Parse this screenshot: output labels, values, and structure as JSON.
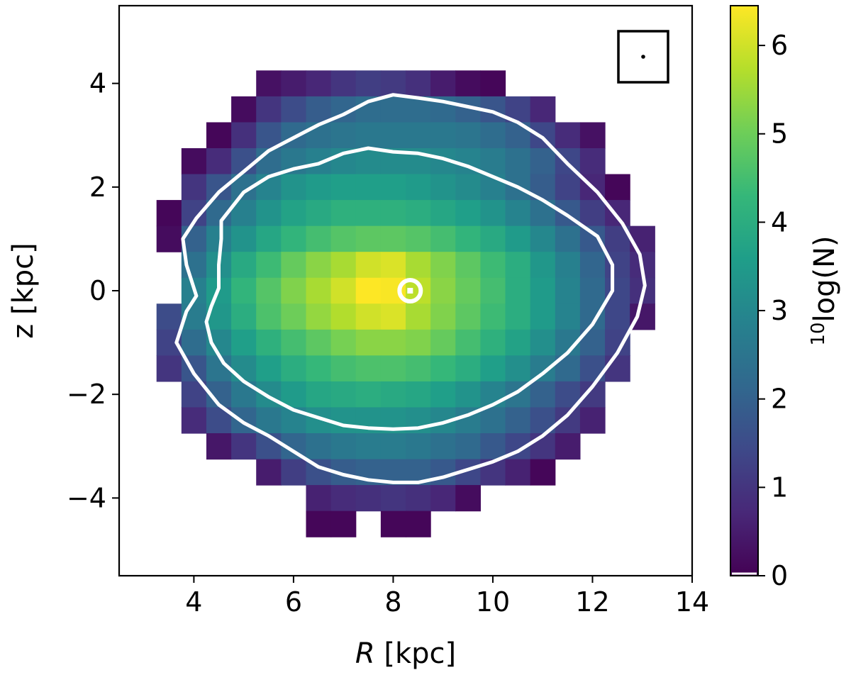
{
  "chart_data": {
    "type": "heatmap",
    "title": "",
    "xlabel": {
      "italic": "R",
      "rest": " [kpc]"
    },
    "ylabel": "z [kpc]",
    "xlim": [
      2.5,
      14
    ],
    "ylim": [
      -5.5,
      5.5
    ],
    "xticks": [
      4,
      6,
      8,
      10,
      12,
      14
    ],
    "yticks": [
      -4,
      -2,
      0,
      2,
      4
    ],
    "xtick_labels": [
      "4",
      "6",
      "8",
      "10",
      "12",
      "14"
    ],
    "ytick_labels": [
      "−4",
      "−2",
      "0",
      "2",
      "4"
    ],
    "colorbar": {
      "label_sup": "10",
      "label_rest": "log(N)",
      "range": [
        0,
        6.45
      ],
      "ticks": [
        0,
        1,
        2,
        3,
        4,
        5,
        6
      ],
      "tick_labels": [
        "0",
        "1",
        "2",
        "3",
        "4",
        "5",
        "6"
      ],
      "colormap": "viridis"
    },
    "bin_size_kpc": 0.5,
    "row_z_centers": [
      4.0,
      3.5,
      3.0,
      2.5,
      2.0,
      1.5,
      1.0,
      0.5,
      0.0,
      -0.5,
      -1.0,
      -1.5,
      -2.0,
      -2.5,
      -3.0,
      -3.5,
      -4.0,
      -4.5
    ],
    "rows": [
      {
        "z": 4.0,
        "r_start": 5.5,
        "values": [
          0.3,
          0.5,
          0.7,
          1.0,
          1.2,
          1.1,
          0.9,
          0.5,
          0.2,
          0.1
        ]
      },
      {
        "z": 3.5,
        "r_start": 5.0,
        "values": [
          0.2,
          1.0,
          1.5,
          1.9,
          2.1,
          2.3,
          2.3,
          2.3,
          2.2,
          2.0,
          1.7,
          1.3,
          0.7
        ]
      },
      {
        "z": 3.0,
        "r_start": 4.5,
        "values": [
          0.1,
          0.9,
          1.7,
          2.2,
          2.4,
          2.5,
          2.6,
          2.6,
          2.6,
          2.6,
          2.5,
          2.3,
          2.0,
          1.4,
          0.8,
          0.3
        ]
      },
      {
        "z": 2.5,
        "r_start": 4.0,
        "values": [
          0.2,
          0.8,
          1.6,
          2.3,
          2.6,
          2.8,
          3.0,
          3.1,
          3.1,
          3.1,
          3.0,
          2.9,
          2.7,
          2.4,
          2.0,
          1.4,
          0.8
        ]
      },
      {
        "z": 2.0,
        "r_start": 4.0,
        "values": [
          1.0,
          1.7,
          2.4,
          2.9,
          3.3,
          3.5,
          3.6,
          3.6,
          3.6,
          3.5,
          3.3,
          3.1,
          2.8,
          2.4,
          1.9,
          1.3,
          0.7,
          0.1
        ]
      },
      {
        "z": 1.5,
        "r_start": 3.5,
        "values": [
          0.1,
          1.3,
          2.2,
          2.8,
          3.3,
          3.7,
          3.9,
          4.1,
          4.1,
          4.1,
          4.0,
          3.8,
          3.6,
          3.3,
          2.9,
          2.4,
          1.8,
          1.2,
          0.7
        ]
      },
      {
        "z": 1.0,
        "r_start": 3.5,
        "values": [
          0.2,
          2.0,
          2.8,
          3.3,
          3.8,
          4.2,
          4.5,
          4.7,
          4.8,
          4.8,
          4.7,
          4.5,
          4.2,
          3.9,
          3.5,
          3.0,
          2.4,
          1.8,
          1.2,
          0.6
        ]
      },
      {
        "z": 0.5,
        "r_start": 4.0,
        "values": [
          2.4,
          3.2,
          3.9,
          4.4,
          4.9,
          5.3,
          5.6,
          6.0,
          6.1,
          5.6,
          5.2,
          4.8,
          4.4,
          4.0,
          3.4,
          2.8,
          2.1,
          1.3,
          0.8
        ]
      },
      {
        "z": 0.0,
        "r_start": 4.0,
        "values": [
          2.8,
          3.5,
          4.2,
          4.7,
          5.2,
          5.6,
          6.0,
          6.45,
          6.4,
          5.8,
          5.3,
          4.9,
          4.5,
          4.0,
          3.5,
          2.9,
          2.2,
          1.4,
          0.9
        ]
      },
      {
        "z": -0.5,
        "r_start": 3.5,
        "values": [
          1.5,
          2.7,
          3.4,
          4.0,
          4.6,
          5.0,
          5.4,
          5.7,
          6.0,
          6.1,
          5.6,
          5.2,
          4.8,
          4.4,
          4.0,
          3.5,
          2.9,
          2.2,
          1.4,
          0.4
        ]
      },
      {
        "z": -1.0,
        "r_start": 3.5,
        "values": [
          1.3,
          2.3,
          3.0,
          3.6,
          4.1,
          4.5,
          4.8,
          5.1,
          5.3,
          5.3,
          5.2,
          4.9,
          4.5,
          4.1,
          3.7,
          3.2,
          2.6,
          2.0,
          1.3
        ]
      },
      {
        "z": -1.5,
        "r_start": 3.5,
        "values": [
          1.0,
          1.7,
          2.5,
          3.1,
          3.6,
          4.0,
          4.3,
          4.5,
          4.6,
          4.6,
          4.5,
          4.3,
          4.0,
          3.6,
          3.2,
          2.7,
          2.2,
          1.6,
          1.0
        ]
      },
      {
        "z": -2.0,
        "r_start": 4.0,
        "values": [
          1.3,
          2.0,
          2.6,
          3.1,
          3.5,
          3.8,
          3.9,
          4.0,
          3.9,
          3.8,
          3.6,
          3.3,
          2.9,
          2.5,
          2.0,
          1.5,
          1.1
        ]
      },
      {
        "z": -2.5,
        "r_start": 4.0,
        "values": [
          0.8,
          1.5,
          2.1,
          2.6,
          2.9,
          3.2,
          3.3,
          3.3,
          3.3,
          3.2,
          3.0,
          2.7,
          2.4,
          2.0,
          1.6,
          1.1,
          0.6
        ]
      },
      {
        "z": -3.0,
        "r_start": 4.5,
        "values": [
          0.4,
          1.0,
          1.6,
          2.1,
          2.4,
          2.6,
          2.7,
          2.7,
          2.6,
          2.4,
          2.2,
          1.8,
          1.4,
          1.0,
          0.5
        ]
      },
      {
        "z": -3.5,
        "r_start": 5.5,
        "values": [
          0.5,
          1.2,
          1.6,
          1.9,
          2.0,
          2.0,
          2.0,
          1.8,
          1.4,
          1.0,
          0.6,
          0.1
        ]
      },
      {
        "z": -4.0,
        "r_start": 6.5,
        "values": [
          0.6,
          0.8,
          0.9,
          1.0,
          0.9,
          0.7,
          0.2
        ]
      },
      {
        "z": -4.5,
        "r_start": 6.5,
        "values": [
          0.1,
          0.1,
          null,
          0.1,
          0.1
        ]
      }
    ],
    "contours": [
      {
        "name": "outer",
        "points": [
          [
            3.78,
            1.0
          ],
          [
            3.85,
            0.5
          ],
          [
            4.05,
            -0.1
          ],
          [
            3.85,
            -0.4
          ],
          [
            3.65,
            -1.0
          ],
          [
            4.0,
            -1.6
          ],
          [
            4.5,
            -2.2
          ],
          [
            5.0,
            -2.55
          ],
          [
            5.5,
            -2.8
          ],
          [
            6.0,
            -3.1
          ],
          [
            6.5,
            -3.4
          ],
          [
            7.0,
            -3.55
          ],
          [
            7.5,
            -3.65
          ],
          [
            8.0,
            -3.7
          ],
          [
            8.5,
            -3.7
          ],
          [
            9.0,
            -3.6
          ],
          [
            9.5,
            -3.45
          ],
          [
            10.0,
            -3.3
          ],
          [
            10.5,
            -3.1
          ],
          [
            11.0,
            -2.8
          ],
          [
            11.5,
            -2.4
          ],
          [
            12.0,
            -1.85
          ],
          [
            12.5,
            -1.2
          ],
          [
            12.9,
            -0.5
          ],
          [
            13.05,
            0.1
          ],
          [
            12.95,
            0.7
          ],
          [
            12.6,
            1.3
          ],
          [
            12.1,
            1.9
          ],
          [
            11.5,
            2.45
          ],
          [
            11.0,
            2.95
          ],
          [
            10.5,
            3.25
          ],
          [
            10.0,
            3.45
          ],
          [
            9.5,
            3.55
          ],
          [
            9.0,
            3.65
          ],
          [
            8.5,
            3.72
          ],
          [
            8.0,
            3.78
          ],
          [
            7.5,
            3.65
          ],
          [
            7.0,
            3.4
          ],
          [
            6.5,
            3.2
          ],
          [
            6.0,
            2.95
          ],
          [
            5.5,
            2.7
          ],
          [
            5.0,
            2.3
          ],
          [
            4.5,
            1.9
          ],
          [
            4.05,
            1.4
          ],
          [
            3.78,
            1.0
          ]
        ]
      },
      {
        "name": "inner",
        "points": [
          [
            4.55,
            1.0
          ],
          [
            4.5,
            0.5
          ],
          [
            4.5,
            0.05
          ],
          [
            4.35,
            -0.3
          ],
          [
            4.25,
            -0.6
          ],
          [
            4.35,
            -1.0
          ],
          [
            4.6,
            -1.4
          ],
          [
            5.0,
            -1.75
          ],
          [
            5.5,
            -2.05
          ],
          [
            6.0,
            -2.3
          ],
          [
            6.5,
            -2.45
          ],
          [
            7.0,
            -2.6
          ],
          [
            7.5,
            -2.65
          ],
          [
            8.0,
            -2.67
          ],
          [
            8.5,
            -2.65
          ],
          [
            9.0,
            -2.55
          ],
          [
            9.5,
            -2.4
          ],
          [
            10.0,
            -2.2
          ],
          [
            10.5,
            -1.95
          ],
          [
            11.0,
            -1.6
          ],
          [
            11.5,
            -1.2
          ],
          [
            12.0,
            -0.65
          ],
          [
            12.4,
            0.0
          ],
          [
            12.4,
            0.5
          ],
          [
            12.1,
            1.05
          ],
          [
            11.5,
            1.45
          ],
          [
            11.0,
            1.75
          ],
          [
            10.5,
            2.0
          ],
          [
            10.0,
            2.2
          ],
          [
            9.5,
            2.4
          ],
          [
            9.0,
            2.55
          ],
          [
            8.5,
            2.65
          ],
          [
            8.0,
            2.68
          ],
          [
            7.5,
            2.75
          ],
          [
            7.0,
            2.65
          ],
          [
            6.5,
            2.45
          ],
          [
            6.0,
            2.35
          ],
          [
            5.5,
            2.2
          ],
          [
            5.0,
            1.9
          ],
          [
            4.55,
            1.35
          ],
          [
            4.55,
            1.0
          ]
        ]
      }
    ],
    "sun_marker": {
      "R": 8.34,
      "z": 0.0
    },
    "inset": {
      "position": "top-right",
      "content": "scale box with dot"
    }
  }
}
